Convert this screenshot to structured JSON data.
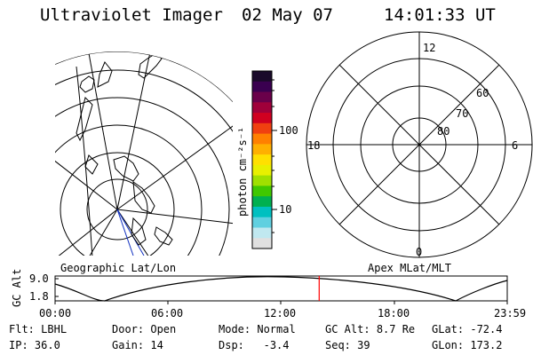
{
  "header": {
    "title": "Ultraviolet Imager",
    "date": "02 May 07",
    "time": "14:01:33 UT"
  },
  "left_panel": {
    "label": "Geographic Lat/Lon"
  },
  "right_panel": {
    "label": "Apex MLat/MLT",
    "mlt_labels": {
      "top": "12",
      "left": "18",
      "right": "6",
      "bottom": "0"
    },
    "lat_labels": [
      "60",
      "70",
      "80"
    ]
  },
  "colorbar": {
    "unit_label": "photon cm⁻²s⁻¹",
    "ticks": [
      "100",
      "10"
    ],
    "colors": [
      "#1a0a2a",
      "#3a0050",
      "#6a004a",
      "#a0003a",
      "#d00020",
      "#f04010",
      "#ff8000",
      "#ffb000",
      "#ffe000",
      "#e8f000",
      "#a0e000",
      "#40c800",
      "#00b050",
      "#00c0c0",
      "#60d0e0",
      "#c0e8f0",
      "#e0e0e0"
    ]
  },
  "altitude_plot": {
    "ylabel": "GC Alt",
    "yticks": [
      "9.0",
      "1.8"
    ],
    "xticks": [
      "00:00",
      "06:00",
      "12:00",
      "18:00",
      "23:59"
    ],
    "current_time_fraction": 0.584,
    "marker_color": "#ff0000"
  },
  "info": {
    "row1": [
      {
        "k": "Flt:",
        "v": "LBHL"
      },
      {
        "k": "Door:",
        "v": "Open"
      },
      {
        "k": "Mode:",
        "v": "Normal"
      },
      {
        "k": "GC Alt:",
        "v": "8.7 Re"
      },
      {
        "k": "GLat:",
        "v": "-72.4"
      }
    ],
    "row2": [
      {
        "k": "IP:",
        "v": "36.0"
      },
      {
        "k": "Gain:",
        "v": "14"
      },
      {
        "k": "Dsp:",
        "v": "-3.4"
      },
      {
        "k": "Seq:",
        "v": "39"
      },
      {
        "k": "GLon:",
        "v": "173.2"
      }
    ]
  }
}
